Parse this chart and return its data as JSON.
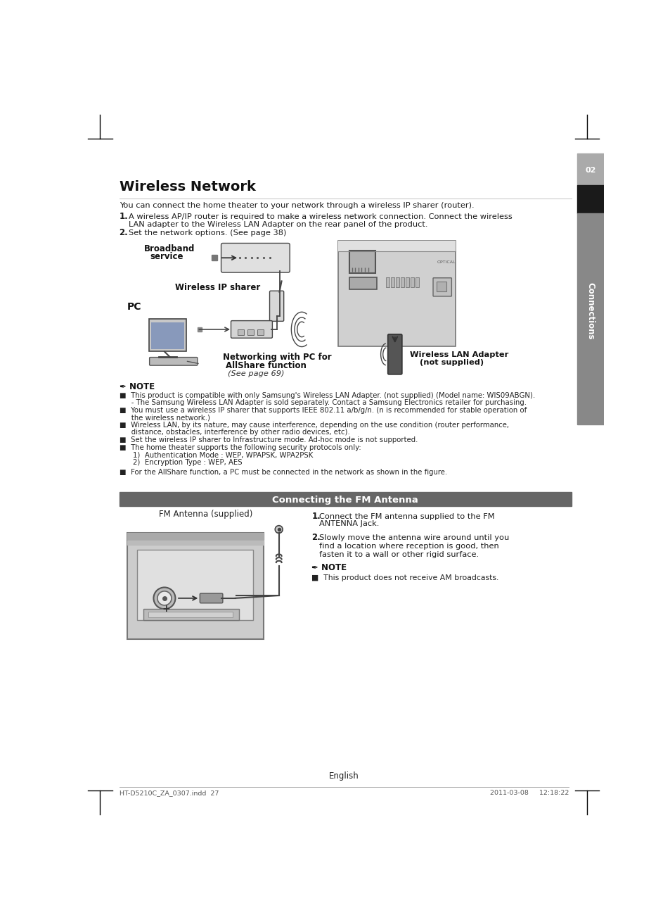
{
  "bg_color": "#ffffff",
  "title_wireless": "Wireless Network",
  "title_fm": "Connecting the FM Antenna",
  "footer_left": "HT-D5210C_ZA_0307.indd  27",
  "footer_right": "2011-03-08     12:18:22",
  "footer_english": "English",
  "body_text_color": "#222222",
  "sidebar_dark": "#222222",
  "sidebar_mid": "#888888",
  "sidebar_light": "#aaaaaa",
  "fm_bar_color": "#666666",
  "note_icon": "✒",
  "note_lines_wireless": [
    "■  This product is compatible with only Samsung's Wireless LAN Adapter. (not supplied) (Model name: WIS09ABGN).",
    "   - The Samsung Wireless LAN Adapter is sold separately. Contact a Samsung Electronics retailer for purchasing.",
    "■  You must use a wireless IP sharer that supports IEEE 802.11 a/b/g/n. (n is recommended for stable operation of",
    "   the wireless network.)",
    "■  Wireless LAN, by its nature, may cause interference, depending on the use condition (router performance,",
    "   distance, obstacles, interference by other radio devices, etc).",
    "■  Set the wireless IP sharer to Infrastructure mode. Ad-hoc mode is not supported.",
    "■  The home theater supports the following security protocols only:",
    "      1)  Authentication Mode : WEP, WPAPSK, WPA2PSK",
    "      2)  Encryption Type : WEP, AES",
    "",
    "■  For the AllShare function, a PC must be connected in the network as shown in the figure."
  ]
}
